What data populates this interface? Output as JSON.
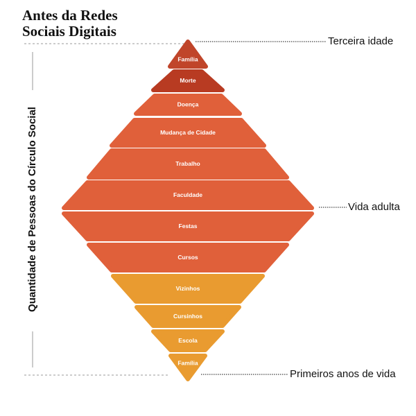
{
  "header": {
    "title_lines": [
      "Antes da Redes",
      "Sociais Digitais"
    ]
  },
  "axis_label": "Quantidade de Pessoas do Círculo Social",
  "layers": [
    {
      "label": "Família"
    },
    {
      "label": "Morte"
    },
    {
      "label": "Doença"
    },
    {
      "label": "Mudança de Cidade"
    },
    {
      "label": "Trabalho"
    },
    {
      "label": "Faculdade"
    },
    {
      "label": "Festas"
    },
    {
      "label": "Cursos"
    },
    {
      "label": "Vizinhos"
    },
    {
      "label": "Cursinhos"
    },
    {
      "label": "Escola"
    },
    {
      "label": "Família"
    }
  ],
  "stages": [
    {
      "label": "Terceira idade"
    },
    {
      "label": "Vida adulta"
    },
    {
      "label": "Primeiros anos de vida"
    }
  ]
}
